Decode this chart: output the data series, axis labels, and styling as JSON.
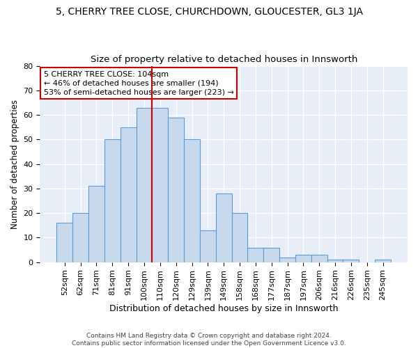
{
  "title": "5, CHERRY TREE CLOSE, CHURCHDOWN, GLOUCESTER, GL3 1JA",
  "subtitle": "Size of property relative to detached houses in Innsworth",
  "xlabel": "Distribution of detached houses by size in Innsworth",
  "ylabel": "Number of detached properties",
  "categories": [
    "52sqm",
    "62sqm",
    "71sqm",
    "81sqm",
    "91sqm",
    "100sqm",
    "110sqm",
    "120sqm",
    "129sqm",
    "139sqm",
    "149sqm",
    "158sqm",
    "168sqm",
    "177sqm",
    "187sqm",
    "197sqm",
    "206sqm",
    "216sqm",
    "226sqm",
    "235sqm",
    "245sqm"
  ],
  "values": [
    16,
    20,
    31,
    50,
    55,
    63,
    63,
    59,
    50,
    13,
    28,
    20,
    6,
    6,
    2,
    3,
    3,
    1,
    1,
    0,
    1
  ],
  "bar_color": "#c9d9ed",
  "bar_edge_color": "#5b9bd5",
  "vline_x": 5.5,
  "vline_color": "#cc0000",
  "annotation_box_text": "5 CHERRY TREE CLOSE: 104sqm\n← 46% of detached houses are smaller (194)\n53% of semi-detached houses are larger (223) →",
  "ylim": [
    0,
    80
  ],
  "yticks": [
    0,
    10,
    20,
    30,
    40,
    50,
    60,
    70,
    80
  ],
  "plot_bg_color": "#e8eef8",
  "fig_bg_color": "#ffffff",
  "footer": "Contains HM Land Registry data © Crown copyright and database right 2024.\nContains public sector information licensed under the Open Government Licence v3.0.",
  "title_fontsize": 10,
  "subtitle_fontsize": 9.5,
  "xlabel_fontsize": 9,
  "ylabel_fontsize": 8.5,
  "tick_fontsize": 8,
  "annotation_fontsize": 8,
  "footer_fontsize": 6.5
}
